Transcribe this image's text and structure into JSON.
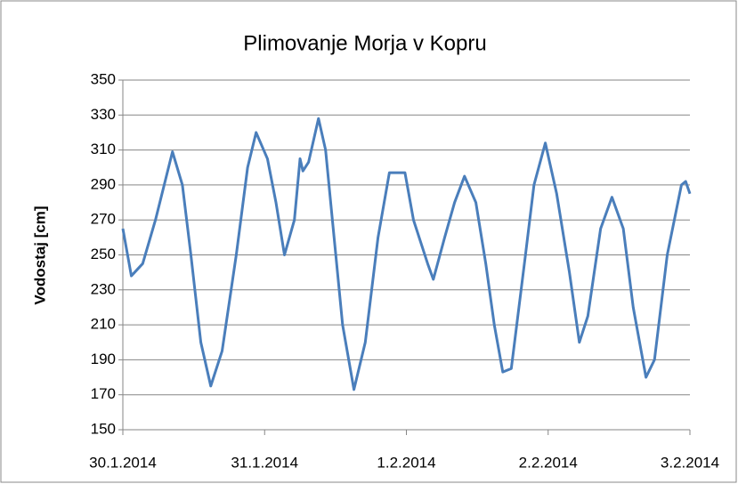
{
  "chart_data": {
    "type": "line",
    "title": "Plimovanje Morja v Kopru",
    "y_label": "Vodostaj [cm]",
    "x": [
      0,
      0.06,
      0.14,
      0.23,
      0.35,
      0.42,
      0.48,
      0.55,
      0.62,
      0.7,
      0.8,
      0.88,
      0.94,
      1.02,
      1.08,
      1.14,
      1.21,
      1.25,
      1.27,
      1.31,
      1.38,
      1.43,
      1.49,
      1.55,
      1.63,
      1.71,
      1.8,
      1.88,
      1.99,
      2.05,
      2.15,
      2.19,
      2.27,
      2.34,
      2.41,
      2.49,
      2.56,
      2.62,
      2.68,
      2.74,
      2.84,
      2.9,
      2.98,
      3.06,
      3.15,
      3.22,
      3.28,
      3.37,
      3.45,
      3.53,
      3.6,
      3.69,
      3.75,
      3.84,
      3.94,
      3.97,
      4.0
    ],
    "series": [
      {
        "name": "Vodostaj",
        "color": "#4a7ebb",
        "values": [
          265,
          238,
          245,
          270,
          309,
          290,
          250,
          200,
          175,
          195,
          250,
          300,
          320,
          305,
          280,
          250,
          270,
          305,
          298,
          303,
          328,
          310,
          260,
          210,
          173,
          200,
          260,
          297,
          297,
          270,
          245,
          236,
          260,
          280,
          295,
          280,
          245,
          210,
          183,
          185,
          250,
          290,
          314,
          285,
          240,
          200,
          215,
          265,
          283,
          265,
          220,
          180,
          190,
          250,
          290,
          292,
          285
        ]
      }
    ],
    "xlim": [
      0,
      4
    ],
    "xticks": [
      {
        "value": 0,
        "label": "30.1.2014"
      },
      {
        "value": 1,
        "label": "31.1.2014"
      },
      {
        "value": 2,
        "label": "1.2.2014"
      },
      {
        "value": 3,
        "label": "2.2.2014"
      },
      {
        "value": 4,
        "label": "3.2.2014"
      }
    ],
    "ylim": [
      150,
      350
    ],
    "yticks": [
      150,
      170,
      190,
      210,
      230,
      250,
      270,
      290,
      310,
      330,
      350
    ],
    "grid": true
  }
}
